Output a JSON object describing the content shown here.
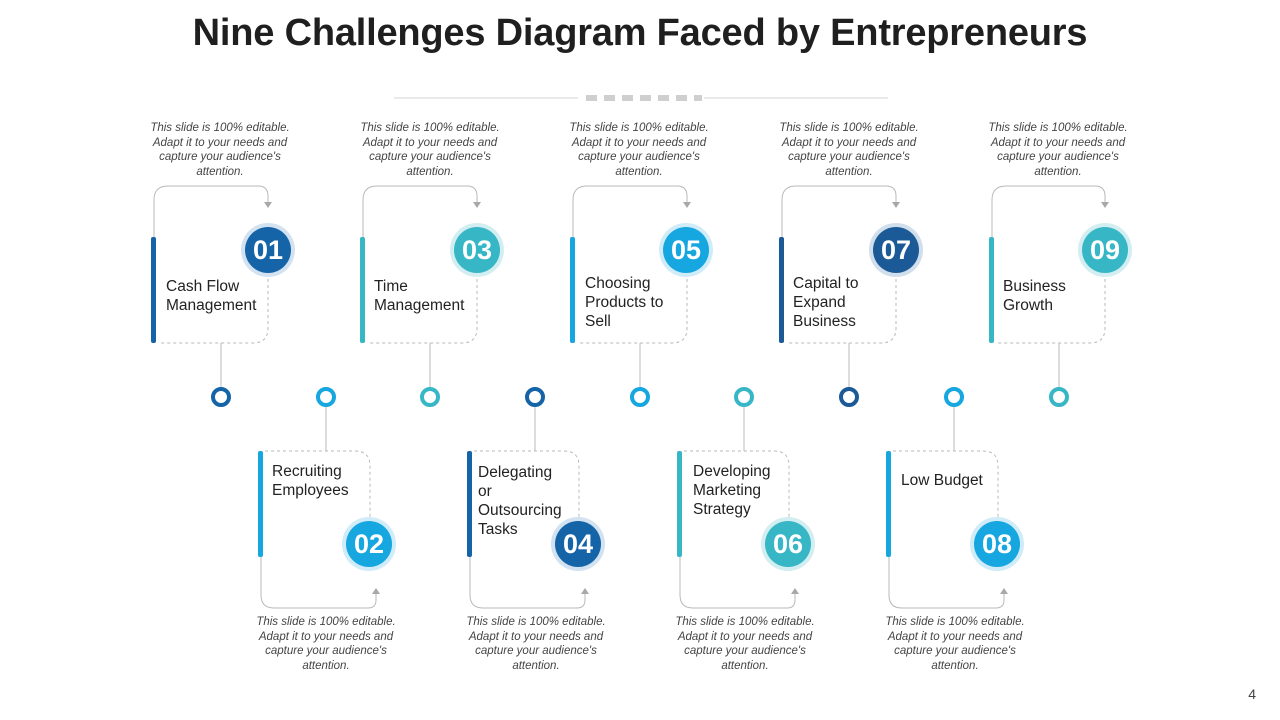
{
  "title": "Nine Challenges Diagram Faced by Entrepreneurs",
  "page_number": "4",
  "description_text": "This slide is 100% editable. Adapt it to your needs and capture your audience's attention.",
  "colors": {
    "dark_blue": "#1564a8",
    "bright_blue": "#16a6e0",
    "teal": "#37b6c6",
    "navy": "#1b5a96"
  },
  "challenges": [
    {
      "num": "01",
      "label": "Cash Flow Management"
    },
    {
      "num": "02",
      "label": "Recruiting Employees"
    },
    {
      "num": "03",
      "label": "Time Management"
    },
    {
      "num": "04",
      "label": "Delegating or Outsourcing Tasks"
    },
    {
      "num": "05",
      "label": "Choosing Products to Sell"
    },
    {
      "num": "06",
      "label": "Developing Marketing Strategy"
    },
    {
      "num": "07",
      "label": "Capital to Expand Business"
    },
    {
      "num": "08",
      "label": "Low Budget"
    },
    {
      "num": "09",
      "label": "Business Growth"
    }
  ]
}
